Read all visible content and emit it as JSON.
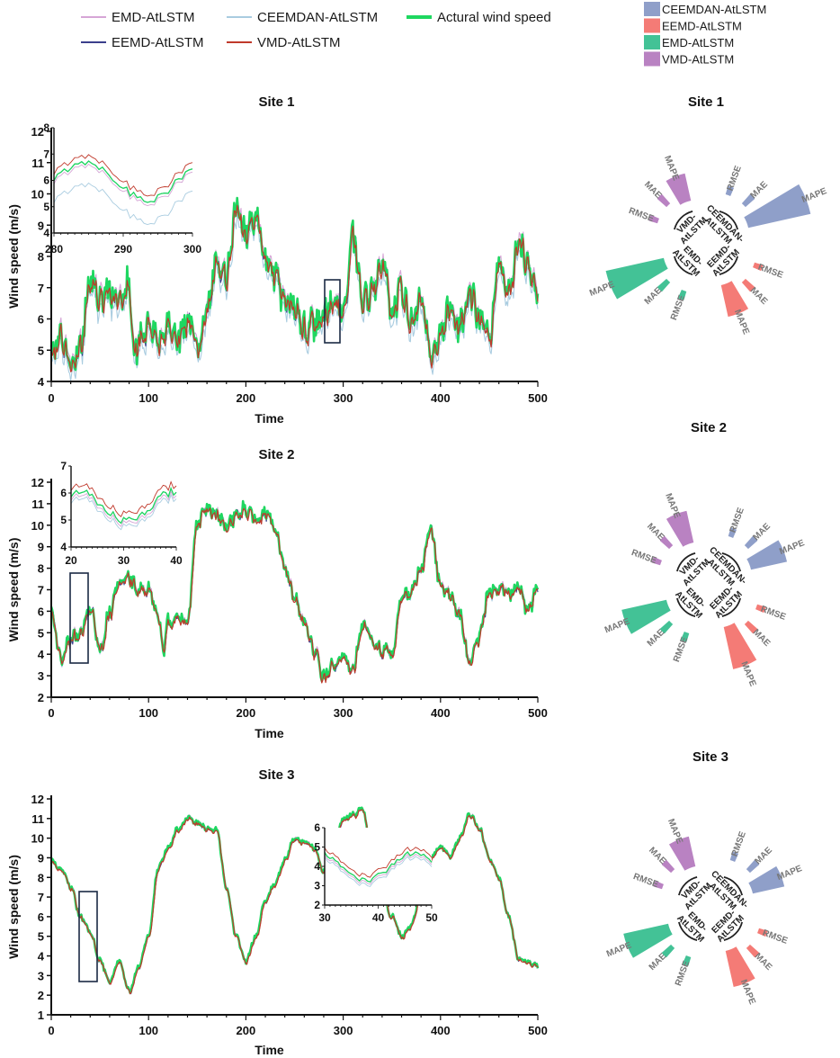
{
  "legend_top": [
    {
      "name": "EMD-AtLSTM",
      "color": "#d6a6d6"
    },
    {
      "name": "CEEMDAN-AtLSTM",
      "color": "#a9cce0"
    },
    {
      "name": "Actural wind speed",
      "color": "#1ed760"
    },
    {
      "name": "EEMD-AtLSTM",
      "color": "#3b3f8c"
    },
    {
      "name": "VMD-AtLSTM",
      "color": "#c0392b"
    }
  ],
  "legend_radial": [
    {
      "name": "CEEMDAN-AtLSTM",
      "color": "#8f9fc9"
    },
    {
      "name": "EEMD-AtLSTM",
      "color": "#f47b76"
    },
    {
      "name": "EMD-AtLSTM",
      "color": "#43c296"
    },
    {
      "name": "VMD-AtLSTM",
      "color": "#b982c2"
    }
  ],
  "chart_data": [
    {
      "type": "line",
      "title": "Site 1",
      "xlabel": "Time",
      "ylabel": "Wind speed (m/s)",
      "xlim": [
        0,
        500
      ],
      "ylim": [
        4,
        12
      ],
      "xticks": [
        0,
        100,
        200,
        300,
        400,
        500
      ],
      "yticks": [
        4,
        5,
        6,
        7,
        8,
        9,
        10,
        11,
        12
      ],
      "anchors": [
        [
          0,
          5.0
        ],
        [
          10,
          5.5
        ],
        [
          20,
          4.5
        ],
        [
          30,
          5.2
        ],
        [
          40,
          7.3
        ],
        [
          50,
          6.6
        ],
        [
          60,
          6.9
        ],
        [
          70,
          6.5
        ],
        [
          80,
          7.2
        ],
        [
          85,
          5.0
        ],
        [
          100,
          5.8
        ],
        [
          110,
          5.2
        ],
        [
          120,
          6.0
        ],
        [
          130,
          5.4
        ],
        [
          140,
          6.0
        ],
        [
          150,
          5.3
        ],
        [
          160,
          6.2
        ],
        [
          170,
          8.0
        ],
        [
          180,
          7.4
        ],
        [
          190,
          9.6
        ],
        [
          200,
          8.7
        ],
        [
          210,
          9.4
        ],
        [
          220,
          8.0
        ],
        [
          230,
          7.5
        ],
        [
          240,
          6.5
        ],
        [
          250,
          6.5
        ],
        [
          260,
          5.7
        ],
        [
          270,
          5.8
        ],
        [
          280,
          6.1
        ],
        [
          290,
          6.5
        ],
        [
          300,
          6.2
        ],
        [
          310,
          8.6
        ],
        [
          320,
          6.5
        ],
        [
          330,
          6.8
        ],
        [
          340,
          7.7
        ],
        [
          350,
          6.4
        ],
        [
          360,
          6.9
        ],
        [
          370,
          6.0
        ],
        [
          380,
          6.6
        ],
        [
          390,
          4.8
        ],
        [
          400,
          5.5
        ],
        [
          410,
          6.3
        ],
        [
          420,
          5.7
        ],
        [
          430,
          6.9
        ],
        [
          440,
          6.0
        ],
        [
          450,
          5.3
        ],
        [
          460,
          7.7
        ],
        [
          470,
          6.9
        ],
        [
          480,
          8.3
        ],
        [
          490,
          7.8
        ],
        [
          500,
          6.5
        ]
      ],
      "inset": {
        "xlim": [
          280,
          300
        ],
        "ylim": [
          4,
          8
        ],
        "xticks": [
          280,
          290,
          300
        ],
        "yticks": [
          4,
          5,
          6,
          7,
          8
        ]
      }
    },
    {
      "type": "line",
      "title": "Site 2",
      "xlabel": "Time",
      "ylabel": "Wind speed (m/s)",
      "xlim": [
        0,
        500
      ],
      "ylim": [
        2,
        12
      ],
      "xticks": [
        0,
        100,
        200,
        300,
        400,
        500
      ],
      "yticks": [
        2,
        3,
        4,
        5,
        6,
        7,
        8,
        9,
        10,
        11,
        12
      ],
      "anchors": [
        [
          0,
          6.0
        ],
        [
          10,
          3.8
        ],
        [
          20,
          4.8
        ],
        [
          30,
          5.0
        ],
        [
          40,
          6.2
        ],
        [
          50,
          4.2
        ],
        [
          60,
          6.0
        ],
        [
          70,
          7.5
        ],
        [
          80,
          7.5
        ],
        [
          90,
          7.0
        ],
        [
          100,
          7.0
        ],
        [
          110,
          5.8
        ],
        [
          115,
          4.0
        ],
        [
          120,
          5.5
        ],
        [
          130,
          5.8
        ],
        [
          140,
          5.5
        ],
        [
          150,
          10.0
        ],
        [
          160,
          10.8
        ],
        [
          170,
          10.5
        ],
        [
          180,
          10.0
        ],
        [
          190,
          10.4
        ],
        [
          200,
          10.8
        ],
        [
          210,
          10.3
        ],
        [
          220,
          10.6
        ],
        [
          230,
          9.8
        ],
        [
          240,
          8.0
        ],
        [
          250,
          6.6
        ],
        [
          260,
          5.5
        ],
        [
          270,
          4.2
        ],
        [
          280,
          3.0
        ],
        [
          290,
          3.5
        ],
        [
          300,
          4.0
        ],
        [
          310,
          3.4
        ],
        [
          320,
          5.4
        ],
        [
          330,
          4.6
        ],
        [
          340,
          4.2
        ],
        [
          350,
          4.0
        ],
        [
          360,
          6.6
        ],
        [
          370,
          6.9
        ],
        [
          380,
          8.0
        ],
        [
          390,
          9.8
        ],
        [
          400,
          7.2
        ],
        [
          410,
          6.7
        ],
        [
          420,
          5.8
        ],
        [
          430,
          3.6
        ],
        [
          440,
          4.8
        ],
        [
          450,
          7.0
        ],
        [
          460,
          7.1
        ],
        [
          470,
          6.8
        ],
        [
          480,
          7.2
        ],
        [
          490,
          6.0
        ],
        [
          500,
          7.1
        ]
      ],
      "inset": {
        "xlim": [
          20,
          40
        ],
        "ylim": [
          4,
          7
        ],
        "xticks": [
          20,
          30,
          40
        ],
        "yticks": [
          4,
          5,
          6,
          7
        ]
      }
    },
    {
      "type": "line",
      "title": "Site 3",
      "xlabel": "Time",
      "ylabel": "Wind speed (m/s)",
      "xlim": [
        0,
        500
      ],
      "ylim": [
        1,
        12
      ],
      "xticks": [
        0,
        100,
        200,
        300,
        400,
        500
      ],
      "yticks": [
        1,
        2,
        3,
        4,
        5,
        6,
        7,
        8,
        9,
        10,
        11,
        12
      ],
      "anchors": [
        [
          0,
          8.8
        ],
        [
          10,
          8.5
        ],
        [
          20,
          7.5
        ],
        [
          30,
          6.0
        ],
        [
          40,
          5.2
        ],
        [
          50,
          3.8
        ],
        [
          60,
          2.7
        ],
        [
          70,
          3.8
        ],
        [
          80,
          2.2
        ],
        [
          90,
          3.5
        ],
        [
          100,
          5.0
        ],
        [
          110,
          8.5
        ],
        [
          120,
          9.5
        ],
        [
          130,
          10.5
        ],
        [
          140,
          11.0
        ],
        [
          150,
          10.8
        ],
        [
          160,
          10.5
        ],
        [
          170,
          10.4
        ],
        [
          180,
          7.5
        ],
        [
          190,
          5.0
        ],
        [
          200,
          3.7
        ],
        [
          210,
          5.0
        ],
        [
          220,
          6.8
        ],
        [
          230,
          7.7
        ],
        [
          240,
          8.9
        ],
        [
          250,
          10.0
        ],
        [
          260,
          9.8
        ],
        [
          270,
          9.5
        ],
        [
          280,
          8.3
        ],
        [
          290,
          9.8
        ],
        [
          300,
          11.0
        ],
        [
          310,
          11.2
        ],
        [
          320,
          11.5
        ],
        [
          330,
          9.0
        ],
        [
          340,
          7.2
        ],
        [
          350,
          6.0
        ],
        [
          360,
          5.0
        ],
        [
          370,
          5.5
        ],
        [
          380,
          7.4
        ],
        [
          390,
          9.0
        ],
        [
          400,
          9.6
        ],
        [
          410,
          9.1
        ],
        [
          420,
          10.0
        ],
        [
          430,
          11.2
        ],
        [
          440,
          10.5
        ],
        [
          450,
          9.0
        ],
        [
          460,
          8.0
        ],
        [
          470,
          6.0
        ],
        [
          480,
          3.9
        ],
        [
          490,
          3.7
        ],
        [
          500,
          3.5
        ]
      ],
      "inset": {
        "xlim": [
          30,
          50
        ],
        "ylim": [
          2,
          6
        ],
        "xticks": [
          30,
          40,
          50
        ],
        "yticks": [
          2,
          3,
          4,
          5,
          6
        ]
      }
    }
  ],
  "radial_charts": [
    {
      "title": "Site 1"
    },
    {
      "title": "Site 2"
    },
    {
      "title": "Site 3"
    }
  ],
  "radial_labels": {
    "models": {
      "CEEMDAN": "CEEMDAN-",
      "EEMD": "EEMD-",
      "EMD": "EMD-",
      "VMD": "VMD-",
      "suffix": "AtLSTM"
    },
    "metrics": [
      "RMSE",
      "MAE",
      "MAPE"
    ]
  }
}
